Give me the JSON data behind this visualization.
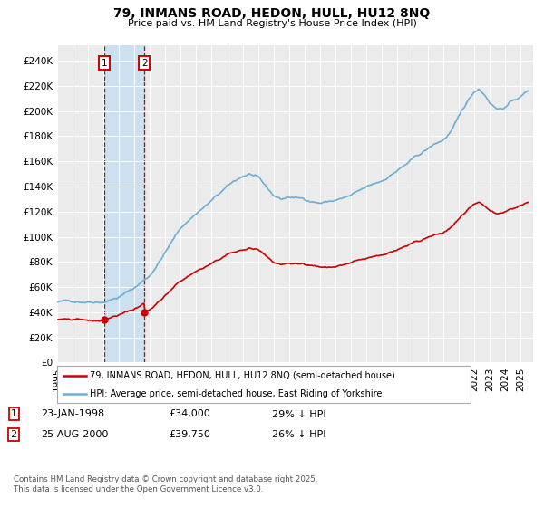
{
  "title": "79, INMANS ROAD, HEDON, HULL, HU12 8NQ",
  "subtitle": "Price paid vs. HM Land Registry's House Price Index (HPI)",
  "ylabel_ticks": [
    "£0",
    "£20K",
    "£40K",
    "£60K",
    "£80K",
    "£100K",
    "£120K",
    "£140K",
    "£160K",
    "£180K",
    "£200K",
    "£220K",
    "£240K"
  ],
  "ytick_values": [
    0,
    20000,
    40000,
    60000,
    80000,
    100000,
    120000,
    140000,
    160000,
    180000,
    200000,
    220000,
    240000
  ],
  "ylim": [
    0,
    252000
  ],
  "xlim_start": 1995.0,
  "xlim_end": 2025.8,
  "purchase1_date": 1998.07,
  "purchase1_price": 34000,
  "purchase2_date": 2000.65,
  "purchase2_price": 39750,
  "legend_line1": "79, INMANS ROAD, HEDON, HULL, HU12 8NQ (semi-detached house)",
  "legend_line2": "HPI: Average price, semi-detached house, East Riding of Yorkshire",
  "hpi_color": "#6baed6",
  "price_color": "#cc0000",
  "background_color": "#ffffff",
  "plot_bg_color": "#ebebeb",
  "shade_color": "#c8dff0",
  "grid_color": "#ffffff",
  "footnote": "Contains HM Land Registry data © Crown copyright and database right 2025.\nThis data is licensed under the Open Government Licence v3.0."
}
